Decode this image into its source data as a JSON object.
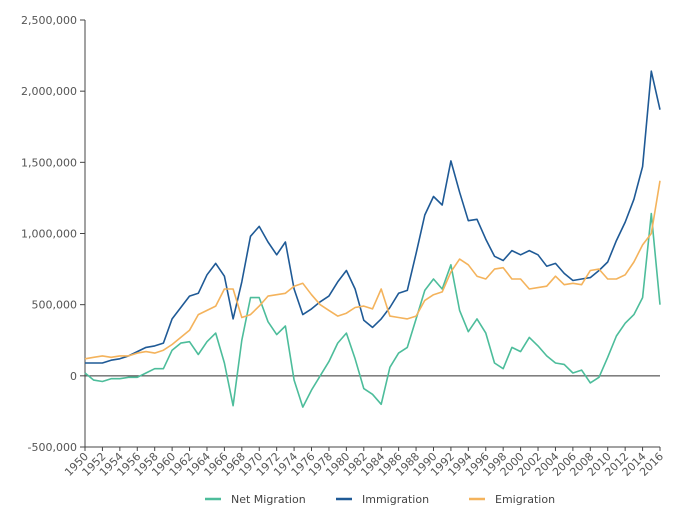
{
  "chart_data": {
    "type": "line",
    "title": "",
    "xlabel": "",
    "ylabel": "",
    "x": [
      1950,
      1951,
      1952,
      1953,
      1954,
      1955,
      1956,
      1957,
      1958,
      1959,
      1960,
      1961,
      1962,
      1963,
      1964,
      1965,
      1966,
      1967,
      1968,
      1969,
      1970,
      1971,
      1972,
      1973,
      1974,
      1975,
      1976,
      1977,
      1978,
      1979,
      1980,
      1981,
      1982,
      1983,
      1984,
      1985,
      1986,
      1987,
      1988,
      1989,
      1990,
      1991,
      1992,
      1993,
      1994,
      1995,
      1996,
      1997,
      1998,
      1999,
      2000,
      2001,
      2002,
      2003,
      2004,
      2005,
      2006,
      2007,
      2008,
      2009,
      2010,
      2011,
      2012,
      2013,
      2014,
      2015,
      2016
    ],
    "xticks": [
      "1950",
      "1952",
      "1954",
      "1956",
      "1958",
      "1960",
      "1962",
      "1964",
      "1966",
      "1968",
      "1970",
      "1972",
      "1974",
      "1976",
      "1978",
      "1980",
      "1982",
      "1984",
      "1986",
      "1988",
      "1990",
      "1992",
      "1994",
      "1996",
      "1998",
      "2000",
      "2002",
      "2004",
      "2006",
      "2008",
      "2010",
      "2012",
      "2014",
      "2016"
    ],
    "ylim": [
      -500000,
      2500000
    ],
    "yticks": [
      -500000,
      0,
      500000,
      1000000,
      1500000,
      2000000,
      2500000
    ],
    "yticklabels": [
      "-500,000",
      "0",
      "500,000",
      "1,000,000",
      "1,500,000",
      "2,000,000",
      "2,500,000"
    ],
    "grid": false,
    "legend_position": "bottom",
    "series": [
      {
        "name": "Net Migration",
        "color": "#4dbd9b",
        "values": [
          20000,
          -30000,
          -40000,
          -20000,
          -20000,
          -10000,
          -10000,
          20000,
          50000,
          50000,
          180000,
          230000,
          240000,
          150000,
          240000,
          300000,
          90000,
          -210000,
          250000,
          550000,
          550000,
          380000,
          290000,
          350000,
          -30000,
          -220000,
          -100000,
          0,
          100000,
          230000,
          300000,
          120000,
          -90000,
          -130000,
          -200000,
          60000,
          160000,
          200000,
          400000,
          600000,
          680000,
          610000,
          780000,
          460000,
          310000,
          400000,
          300000,
          90000,
          50000,
          200000,
          170000,
          270000,
          210000,
          140000,
          90000,
          80000,
          20000,
          40000,
          -50000,
          -10000,
          130000,
          280000,
          370000,
          430000,
          550000,
          1140000,
          500000
        ]
      },
      {
        "name": "Immigration",
        "color": "#1f5a96",
        "values": [
          90000,
          90000,
          90000,
          110000,
          120000,
          140000,
          170000,
          200000,
          210000,
          230000,
          400000,
          480000,
          560000,
          580000,
          710000,
          790000,
          700000,
          400000,
          660000,
          980000,
          1050000,
          940000,
          850000,
          940000,
          610000,
          430000,
          470000,
          520000,
          560000,
          660000,
          740000,
          610000,
          390000,
          340000,
          400000,
          480000,
          580000,
          600000,
          860000,
          1130000,
          1260000,
          1200000,
          1510000,
          1290000,
          1090000,
          1100000,
          960000,
          840000,
          810000,
          880000,
          850000,
          880000,
          850000,
          770000,
          790000,
          720000,
          670000,
          680000,
          690000,
          740000,
          800000,
          950000,
          1080000,
          1240000,
          1470000,
          2140000,
          1870000
        ]
      },
      {
        "name": "Emigration",
        "color": "#f4b35c",
        "values": [
          120000,
          130000,
          140000,
          130000,
          140000,
          140000,
          160000,
          170000,
          160000,
          180000,
          220000,
          270000,
          320000,
          430000,
          460000,
          490000,
          610000,
          610000,
          410000,
          430000,
          490000,
          560000,
          570000,
          580000,
          630000,
          650000,
          570000,
          500000,
          460000,
          420000,
          440000,
          480000,
          490000,
          470000,
          610000,
          420000,
          410000,
          400000,
          420000,
          530000,
          570000,
          590000,
          730000,
          820000,
          780000,
          700000,
          680000,
          750000,
          760000,
          680000,
          680000,
          610000,
          620000,
          630000,
          700000,
          640000,
          650000,
          640000,
          740000,
          750000,
          680000,
          680000,
          710000,
          800000,
          920000,
          1000000,
          1370000
        ]
      }
    ]
  }
}
